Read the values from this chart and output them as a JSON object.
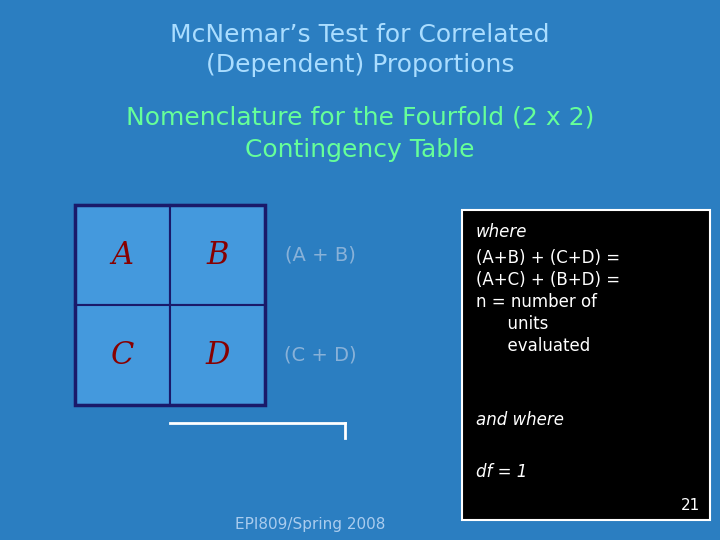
{
  "bg_color": "#2B7EC1",
  "title_line1": "McNemar’s Test for Correlated",
  "title_line2": "(Dependent) Proportions",
  "subtitle_line1": "Nomenclature for the Fourfold (2 x 2)",
  "subtitle_line2": "Contingency Table",
  "title_color": "#AADDFF",
  "subtitle_color": "#66FF99",
  "cell_bg": "#4499DD",
  "cell_border": "#1A1A6A",
  "cell_letter_color": "#880000",
  "row_labels": [
    "(A + B)",
    "(C + D)"
  ],
  "row_label_color": "#99BBDD",
  "box_bg": "#000000",
  "box_text_color": "#FFFFFF",
  "where_text": "where",
  "box_lines": [
    "(A+B) + (C+D) =",
    "(A+C) + (B+D) =",
    "n = number of",
    "      units",
    "      evaluated"
  ],
  "and_where_text": "and where",
  "df_text": "df = 1",
  "footer_text": "EPI809/Spring 2008",
  "footer_color": "#AACCEE",
  "page_num": "21",
  "page_num_color": "#FFFFFF"
}
